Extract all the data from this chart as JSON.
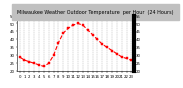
{
  "title": "Milwaukee Weather Outdoor Temperature  per Hour  (24 Hours)",
  "hours": [
    0,
    1,
    2,
    3,
    4,
    5,
    6,
    7,
    8,
    9,
    10,
    11,
    12,
    13,
    14,
    15,
    16,
    17,
    18,
    19,
    20,
    21,
    22,
    23
  ],
  "temps": [
    29,
    27,
    26,
    25,
    24,
    23,
    25,
    30,
    38,
    44,
    47,
    49,
    50,
    49,
    46,
    43,
    40,
    37,
    35,
    33,
    31,
    29,
    28,
    27
  ],
  "line_color": "#ff0000",
  "marker": "s",
  "markersize": 1.5,
  "linewidth": 0.8,
  "linestyle": "--",
  "grid_color": "#888888",
  "grid_style": "--",
  "bg_color": "#ffffff",
  "title_bg": "#c0c0c0",
  "ylim": [
    20,
    55
  ],
  "xlim": [
    -0.5,
    23.5
  ],
  "text_color": "#000000",
  "title_fontsize": 3.5,
  "tick_fontsize": 2.8,
  "ytick_fontsize": 2.8,
  "yticks": [
    20,
    25,
    30,
    35,
    40,
    45,
    50,
    55
  ]
}
